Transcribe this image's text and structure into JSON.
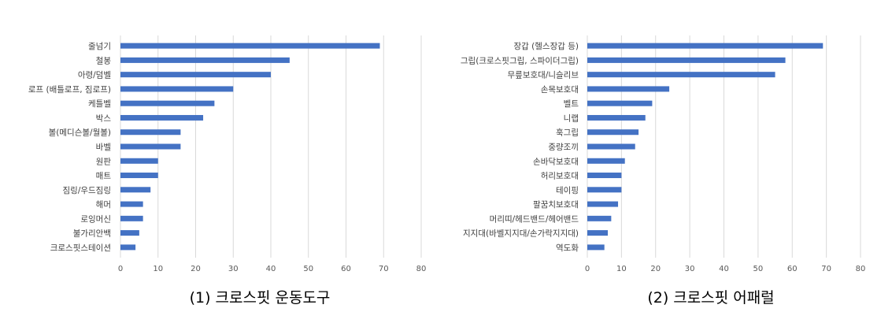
{
  "chart_data": [
    {
      "type": "bar",
      "orientation": "horizontal",
      "caption": "(1) 크로스핏 운동도구",
      "categories": [
        "줄넘기",
        "철봉",
        "아령/덤벨",
        "로프 (배틀로프, 짐로프)",
        "케틀벨",
        "박스",
        "볼(메디슨볼/월볼)",
        "바벨",
        "원판",
        "매트",
        "짐링/우드짐링",
        "해머",
        "로잉머신",
        "불가리안백",
        "크로스핏스테이션"
      ],
      "values": [
        69,
        45,
        40,
        30,
        25,
        22,
        16,
        16,
        10,
        10,
        8,
        6,
        6,
        5,
        4
      ],
      "xlim": [
        0,
        80
      ],
      "xticks": [
        0,
        10,
        20,
        30,
        40,
        50,
        60,
        70,
        80
      ],
      "grid": true,
      "color": "#4472c4"
    },
    {
      "type": "bar",
      "orientation": "horizontal",
      "caption": "(2) 크로스핏 어패럴",
      "categories": [
        "장갑 (헬스장갑 등)",
        "그립(크로스핏그립, 스파이더그립)",
        "무릎보호대/니슬리브",
        "손목보호대",
        "벨트",
        "니랩",
        "훅그립",
        "중량조끼",
        "손바닥보호대",
        "허리보호대",
        "테이핑",
        "팔꿈치보호대",
        "머리띠/헤드밴드/헤어밴드",
        "지지대(바벨지지대/손가락지지대)",
        "역도화"
      ],
      "values": [
        69,
        58,
        55,
        24,
        19,
        17,
        15,
        14,
        11,
        10,
        10,
        9,
        7,
        6,
        5
      ],
      "xlim": [
        0,
        80
      ],
      "xticks": [
        0,
        10,
        20,
        30,
        40,
        50,
        60,
        70,
        80
      ],
      "grid": true,
      "color": "#4472c4"
    }
  ]
}
